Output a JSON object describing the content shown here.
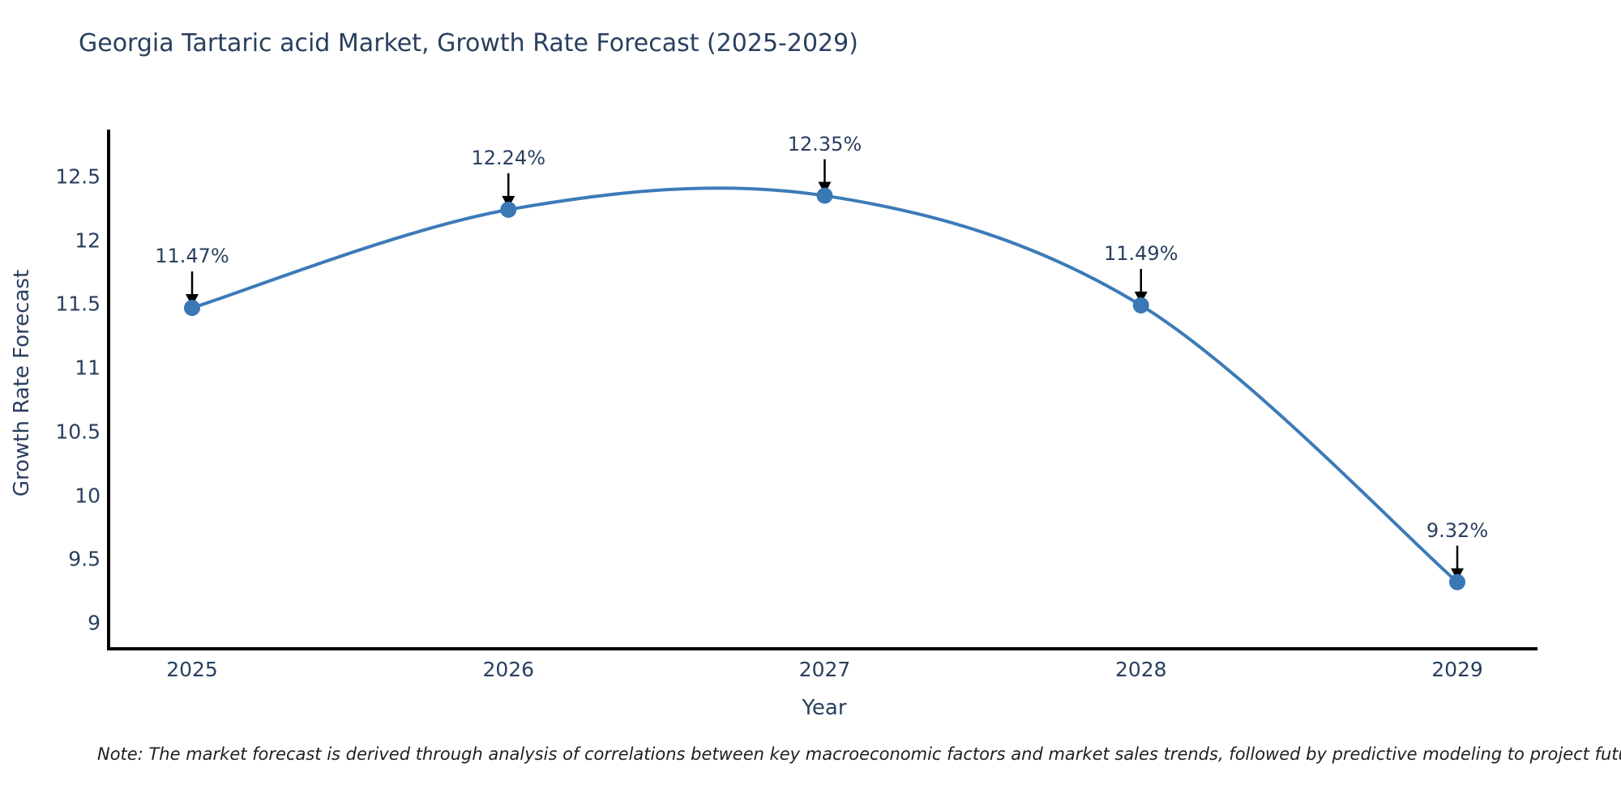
{
  "figure": {
    "title": "Georgia Tartaric acid Market, Growth Rate Forecast (2025-2029)",
    "note": "Note: The market forecast is derived through analysis of correlations between key macroeconomic factors and market sales trends, followed by predictive modeling to project future sal"
  },
  "chart_data": {
    "type": "line",
    "title": "Georgia Tartaric acid Market, Growth Rate Forecast (2025-2029)",
    "xlabel": "Year",
    "ylabel": "Growth Rate Forecast",
    "categories": [
      "2025",
      "2026",
      "2027",
      "2028",
      "2029"
    ],
    "values": [
      11.47,
      12.24,
      12.35,
      11.49,
      9.32
    ],
    "point_labels": [
      "11.47%",
      "12.24%",
      "12.35%",
      "11.49%",
      "9.32%"
    ],
    "yticks": [
      12.5,
      12,
      11.5,
      11,
      10.5,
      10,
      9.5,
      9
    ],
    "ylim": [
      8.797,
      12.868
    ],
    "grid": false,
    "legend": false,
    "line_shape": "spline",
    "annotation_style": "value label with downward arrow onto marker",
    "colors": {
      "line": "#3c7bb8",
      "marker": "#3a78b4",
      "axis": "#000000",
      "text": "#2a3f5f",
      "note_text": "#1f1f1f",
      "arrow": "#000000",
      "background": "#ffffff"
    }
  }
}
